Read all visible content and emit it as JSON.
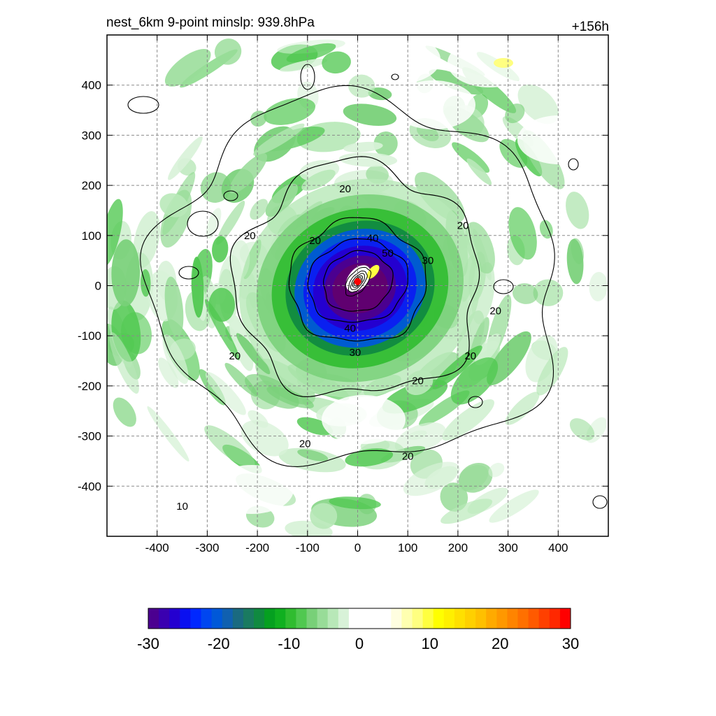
{
  "chart_data": {
    "type": "heatmap",
    "title_left": "nest_6km  9-point minslp: 939.8hPa",
    "title_right": "+156h",
    "xlabel": "",
    "ylabel": "",
    "xlim": [
      -500,
      500
    ],
    "ylim": [
      -500,
      500
    ],
    "x_ticks": [
      -400,
      -300,
      -200,
      -100,
      0,
      100,
      200,
      300,
      400
    ],
    "y_ticks": [
      400,
      300,
      200,
      100,
      0,
      -100,
      -200,
      -300,
      -400
    ],
    "grid": true,
    "center": [
      0,
      8
    ],
    "contour_labels": [
      {
        "text": "20",
        "x": -25,
        "y": 193
      },
      {
        "text": "20",
        "x": -215,
        "y": 100
      },
      {
        "text": "20",
        "x": 210,
        "y": 120
      },
      {
        "text": "20",
        "x": -85,
        "y": 90
      },
      {
        "text": "40",
        "x": 30,
        "y": 95
      },
      {
        "text": "50",
        "x": 60,
        "y": 65
      },
      {
        "text": "30",
        "x": 140,
        "y": 50
      },
      {
        "text": "20",
        "x": 275,
        "y": -50
      },
      {
        "text": "40",
        "x": -15,
        "y": -85
      },
      {
        "text": "30",
        "x": -5,
        "y": -133
      },
      {
        "text": "20",
        "x": -245,
        "y": -140
      },
      {
        "text": "20",
        "x": 225,
        "y": -140
      },
      {
        "text": "20",
        "x": 120,
        "y": -190
      },
      {
        "text": "20",
        "x": -105,
        "y": -315
      },
      {
        "text": "20",
        "x": 100,
        "y": -340
      },
      {
        "text": "10",
        "x": -350,
        "y": -440
      }
    ],
    "colorbar": {
      "min": -30,
      "max": 30,
      "tick_values": [
        -30,
        -20,
        -10,
        0,
        10,
        20,
        30
      ],
      "tick_labels": [
        "-30",
        "-20",
        "-10",
        "0",
        "10",
        "20",
        "30"
      ],
      "colors": [
        "#4b0090",
        "#3a00b0",
        "#2400d0",
        "#0a10f0",
        "#0028ff",
        "#0046f0",
        "#0058d8",
        "#1060b0",
        "#1a6a80",
        "#1a7a60",
        "#108a40",
        "#05a020",
        "#10b020",
        "#30bc30",
        "#50c850",
        "#78d078",
        "#98dc98",
        "#b8e8b8",
        "#d8f2d8",
        "#ffffff",
        "#ffffff",
        "#ffffff",
        "#ffffff",
        "#fffee0",
        "#ffffb0",
        "#ffff80",
        "#ffff40",
        "#ffff00",
        "#fff000",
        "#ffe000",
        "#ffd000",
        "#ffc000",
        "#ffaa00",
        "#ff9800",
        "#ff8400",
        "#ff7000",
        "#ff5a00",
        "#ff4000",
        "#ff2800",
        "#ff0000"
      ]
    }
  }
}
